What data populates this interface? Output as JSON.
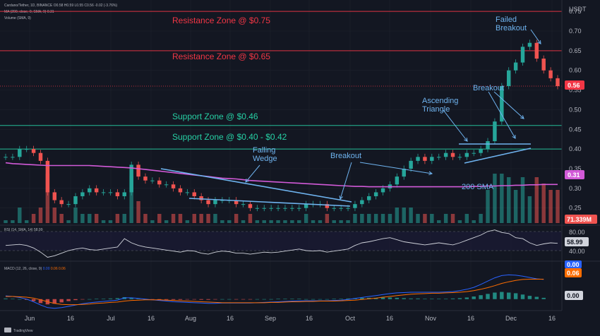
{
  "header": {
    "symbol_line": "Cardano/Tether, 1D, BINANCE  O0.58  H0.59  L0.55  C0.56  -0.02 (-3.76%)",
    "ma_line": "MA (200, close, 0, SMA, 9)  0.31",
    "volume_line": "Volume (SMA, 9)",
    "rsi_line": "RSI (14, SMA, 14)  58.99",
    "macd_line": "MACD (12, 26, close, 9)",
    "macd_values": [
      "0.00",
      "0.06",
      "0.06"
    ],
    "currency": "USDT",
    "watermark": "TradingView"
  },
  "colors": {
    "background": "#131722",
    "up": "#26a69a",
    "down": "#ef5350",
    "sma": "#d25ad8",
    "resistance": "#f23645",
    "support": "#26d0a4",
    "annotation": "#6fb4f0",
    "grid": "#1e222d"
  },
  "chart_data": [
    {
      "type": "line",
      "name": "price",
      "series": [
        {
          "name": "close",
          "values": [
            0.38,
            0.38,
            0.4,
            0.4,
            0.39,
            0.37,
            0.29,
            0.27,
            0.26,
            0.26,
            0.28,
            0.29,
            0.3,
            0.29,
            0.29,
            0.29,
            0.28,
            0.29,
            0.36,
            0.33,
            0.32,
            0.32,
            0.31,
            0.31,
            0.3,
            0.29,
            0.29,
            0.28,
            0.27,
            0.26,
            0.27,
            0.27,
            0.27,
            0.26,
            0.26,
            0.25,
            0.25,
            0.25,
            0.25,
            0.25,
            0.25,
            0.25,
            0.25,
            0.26,
            0.26,
            0.26,
            0.25,
            0.25,
            0.25,
            0.25,
            0.26,
            0.27,
            0.28,
            0.29,
            0.3,
            0.31,
            0.33,
            0.35,
            0.37,
            0.38,
            0.37,
            0.38,
            0.38,
            0.39,
            0.38,
            0.38,
            0.39,
            0.39,
            0.4,
            0.42,
            0.47,
            0.56,
            0.6,
            0.62,
            0.66,
            0.67,
            0.63,
            0.6,
            0.58,
            0.56
          ]
        },
        {
          "name": "200 SMA",
          "values": [
            0.365,
            0.363,
            0.362,
            0.361,
            0.36,
            0.359,
            0.358,
            0.358,
            0.358,
            0.358,
            0.358,
            0.358,
            0.358,
            0.357,
            0.356,
            0.355,
            0.354,
            0.353,
            0.352,
            0.35,
            0.348,
            0.346,
            0.344,
            0.342,
            0.34,
            0.338,
            0.336,
            0.334,
            0.332,
            0.33,
            0.328,
            0.326,
            0.325,
            0.324,
            0.322,
            0.32,
            0.319,
            0.318,
            0.317,
            0.316,
            0.315,
            0.314,
            0.313,
            0.312,
            0.311,
            0.31,
            0.309,
            0.308,
            0.307,
            0.306,
            0.305,
            0.305,
            0.304,
            0.304,
            0.304,
            0.304,
            0.304,
            0.304,
            0.304,
            0.304,
            0.304,
            0.304,
            0.304,
            0.304,
            0.304,
            0.304,
            0.304,
            0.305,
            0.305,
            0.306,
            0.306,
            0.307,
            0.307,
            0.308,
            0.308,
            0.309,
            0.309,
            0.31,
            0.31,
            0.31
          ]
        }
      ],
      "x_tick_labels": [
        "Jun",
        "16",
        "Jul",
        "16",
        "Aug",
        "16",
        "Sep",
        "16",
        "Oct",
        "16",
        "Nov",
        "16",
        "Dec",
        "16"
      ],
      "y_tick_labels": [
        "0.25",
        "0.30",
        "0.35",
        "0.40",
        "0.45",
        "0.50",
        "0.55",
        "0.60",
        "0.65",
        "0.70",
        "0.75"
      ],
      "ylim": [
        0.21,
        0.77
      ],
      "last_price_tag": "0.56",
      "sma_tag": "0.31",
      "volume_tag": "71.339M",
      "zones": [
        {
          "label": "Resistance Zone @ $0.75",
          "value": 0.75,
          "kind": "resistance"
        },
        {
          "label": "Resistance Zone @ $0.65",
          "value": 0.65,
          "kind": "resistance"
        },
        {
          "label": "Support Zone @ $0.46",
          "value": 0.46,
          "kind": "support"
        },
        {
          "label": "Support Zone @ $0.40 - $0.42",
          "value": 0.4,
          "kind": "support"
        }
      ],
      "annotations": [
        {
          "lines": [
            "Failed",
            "Breakout"
          ]
        },
        {
          "lines": [
            "Breakout"
          ]
        },
        {
          "lines": [
            "Ascending",
            "Triangle"
          ]
        },
        {
          "lines": [
            "Falling",
            "Wedge"
          ]
        },
        {
          "lines": [
            "Breakout"
          ]
        },
        {
          "lines": [
            "200 SMA"
          ]
        }
      ]
    },
    {
      "type": "line",
      "name": "rsi",
      "series": [
        {
          "name": "RSI",
          "values": [
            55,
            56,
            57,
            55,
            50,
            42,
            32,
            35,
            40,
            45,
            48,
            50,
            47,
            46,
            48,
            50,
            52,
            68,
            60,
            55,
            52,
            50,
            48,
            46,
            44,
            42,
            45,
            44,
            40,
            38,
            42,
            44,
            43,
            40,
            40,
            38,
            40,
            42,
            41,
            42,
            44,
            46,
            48,
            45,
            44,
            45,
            42,
            44,
            46,
            48,
            55,
            60,
            62,
            65,
            68,
            70,
            66,
            62,
            60,
            58,
            56,
            58,
            60,
            58,
            56,
            60,
            65,
            70,
            75,
            82,
            85,
            80,
            78,
            70,
            68,
            60,
            55,
            58,
            60,
            59
          ]
        }
      ],
      "y_tick_labels": [
        "80.00",
        "40.00"
      ],
      "ylim": [
        30,
        90
      ],
      "value_tag": "58.99"
    },
    {
      "type": "bar",
      "name": "macd",
      "series": [
        {
          "name": "histogram",
          "values": [
            0.002,
            0.001,
            0.0,
            -0.002,
            -0.006,
            -0.012,
            -0.016,
            -0.014,
            -0.01,
            -0.006,
            -0.003,
            -0.001,
            0.0,
            0.001,
            0.001,
            0.002,
            0.003,
            0.006,
            0.004,
            0.002,
            0.0,
            -0.001,
            -0.002,
            -0.002,
            -0.002,
            -0.002,
            -0.001,
            -0.001,
            -0.002,
            -0.002,
            -0.001,
            0.0,
            0.0,
            -0.001,
            -0.001,
            -0.001,
            0.0,
            0.0,
            0.0,
            0.001,
            0.001,
            0.001,
            0.001,
            0.0,
            0.0,
            0.0,
            0.0,
            0.001,
            0.001,
            0.002,
            0.003,
            0.004,
            0.004,
            0.004,
            0.005,
            0.005,
            0.004,
            0.003,
            0.002,
            0.002,
            0.001,
            0.001,
            0.001,
            0.001,
            0.002,
            0.003,
            0.005,
            0.008,
            0.012,
            0.016,
            0.02,
            0.022,
            0.02,
            0.018,
            0.014,
            0.01,
            0.007,
            0.004
          ]
        },
        {
          "name": "macd",
          "values": [
            0.01,
            0.008,
            0.005,
            0.0,
            -0.008,
            -0.018,
            -0.026,
            -0.028,
            -0.026,
            -0.022,
            -0.018,
            -0.014,
            -0.011,
            -0.009,
            -0.007,
            -0.005,
            -0.003,
            0.004,
            0.004,
            0.002,
            0.0,
            -0.002,
            -0.004,
            -0.006,
            -0.008,
            -0.009,
            -0.01,
            -0.011,
            -0.012,
            -0.013,
            -0.013,
            -0.012,
            -0.012,
            -0.012,
            -0.012,
            -0.012,
            -0.011,
            -0.01,
            -0.009,
            -0.008,
            -0.007,
            -0.006,
            -0.005,
            -0.005,
            -0.005,
            -0.005,
            -0.005,
            -0.004,
            -0.003,
            -0.001,
            0.002,
            0.005,
            0.008,
            0.011,
            0.014,
            0.017,
            0.019,
            0.02,
            0.021,
            0.021,
            0.021,
            0.021,
            0.021,
            0.022,
            0.023,
            0.026,
            0.03,
            0.036,
            0.045,
            0.055,
            0.065,
            0.072,
            0.074,
            0.073,
            0.07,
            0.066,
            0.062,
            0.06
          ]
        },
        {
          "name": "signal",
          "values": [
            0.008,
            0.008,
            0.007,
            0.006,
            0.003,
            -0.002,
            -0.008,
            -0.013,
            -0.016,
            -0.017,
            -0.017,
            -0.016,
            -0.015,
            -0.013,
            -0.012,
            -0.01,
            -0.009,
            -0.006,
            -0.004,
            -0.003,
            -0.002,
            -0.002,
            -0.002,
            -0.003,
            -0.004,
            -0.005,
            -0.006,
            -0.007,
            -0.008,
            -0.009,
            -0.01,
            -0.011,
            -0.011,
            -0.011,
            -0.011,
            -0.011,
            -0.011,
            -0.011,
            -0.01,
            -0.01,
            -0.009,
            -0.008,
            -0.008,
            -0.007,
            -0.007,
            -0.006,
            -0.006,
            -0.006,
            -0.005,
            -0.004,
            -0.003,
            -0.001,
            0.001,
            0.003,
            0.006,
            0.008,
            0.011,
            0.013,
            0.015,
            0.016,
            0.017,
            0.018,
            0.018,
            0.019,
            0.02,
            0.021,
            0.023,
            0.026,
            0.03,
            0.035,
            0.041,
            0.048,
            0.053,
            0.057,
            0.06,
            0.061,
            0.061,
            0.061
          ]
        }
      ],
      "y_tick_labels": [
        "0.00"
      ],
      "ylim": [
        -0.035,
        0.09
      ]
    }
  ]
}
